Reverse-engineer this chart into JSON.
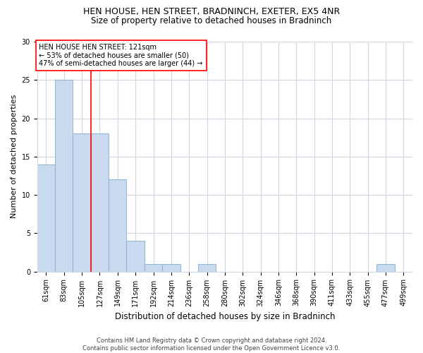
{
  "title": "HEN HOUSE, HEN STREET, BRADNINCH, EXETER, EX5 4NR",
  "subtitle": "Size of property relative to detached houses in Bradninch",
  "xlabel": "Distribution of detached houses by size in Bradninch",
  "ylabel": "Number of detached properties",
  "bar_color": "#c9d9ee",
  "bar_edge_color": "#8db4d8",
  "categories": [
    "61sqm",
    "83sqm",
    "105sqm",
    "127sqm",
    "149sqm",
    "171sqm",
    "192sqm",
    "214sqm",
    "236sqm",
    "258sqm",
    "280sqm",
    "302sqm",
    "324sqm",
    "346sqm",
    "368sqm",
    "390sqm",
    "411sqm",
    "433sqm",
    "455sqm",
    "477sqm",
    "499sqm"
  ],
  "values": [
    14,
    25,
    18,
    18,
    12,
    4,
    1,
    1,
    0,
    1,
    0,
    0,
    0,
    0,
    0,
    0,
    0,
    0,
    0,
    1,
    0
  ],
  "ylim": [
    0,
    30
  ],
  "yticks": [
    0,
    5,
    10,
    15,
    20,
    25,
    30
  ],
  "annotation_text": "HEN HOUSE HEN STREET: 121sqm\n← 53% of detached houses are smaller (50)\n47% of semi-detached houses are larger (44) →",
  "annotation_box_color": "white",
  "annotation_box_edge_color": "red",
  "vline_color": "red",
  "background_color": "white",
  "grid_color": "#d0d8e4",
  "footer_line1": "Contains HM Land Registry data © Crown copyright and database right 2024.",
  "footer_line2": "Contains public sector information licensed under the Open Government Licence v3.0.",
  "title_fontsize": 9,
  "subtitle_fontsize": 8.5,
  "ylabel_fontsize": 8,
  "xlabel_fontsize": 8.5,
  "tick_fontsize": 7,
  "annotation_fontsize": 7,
  "footer_fontsize": 6
}
